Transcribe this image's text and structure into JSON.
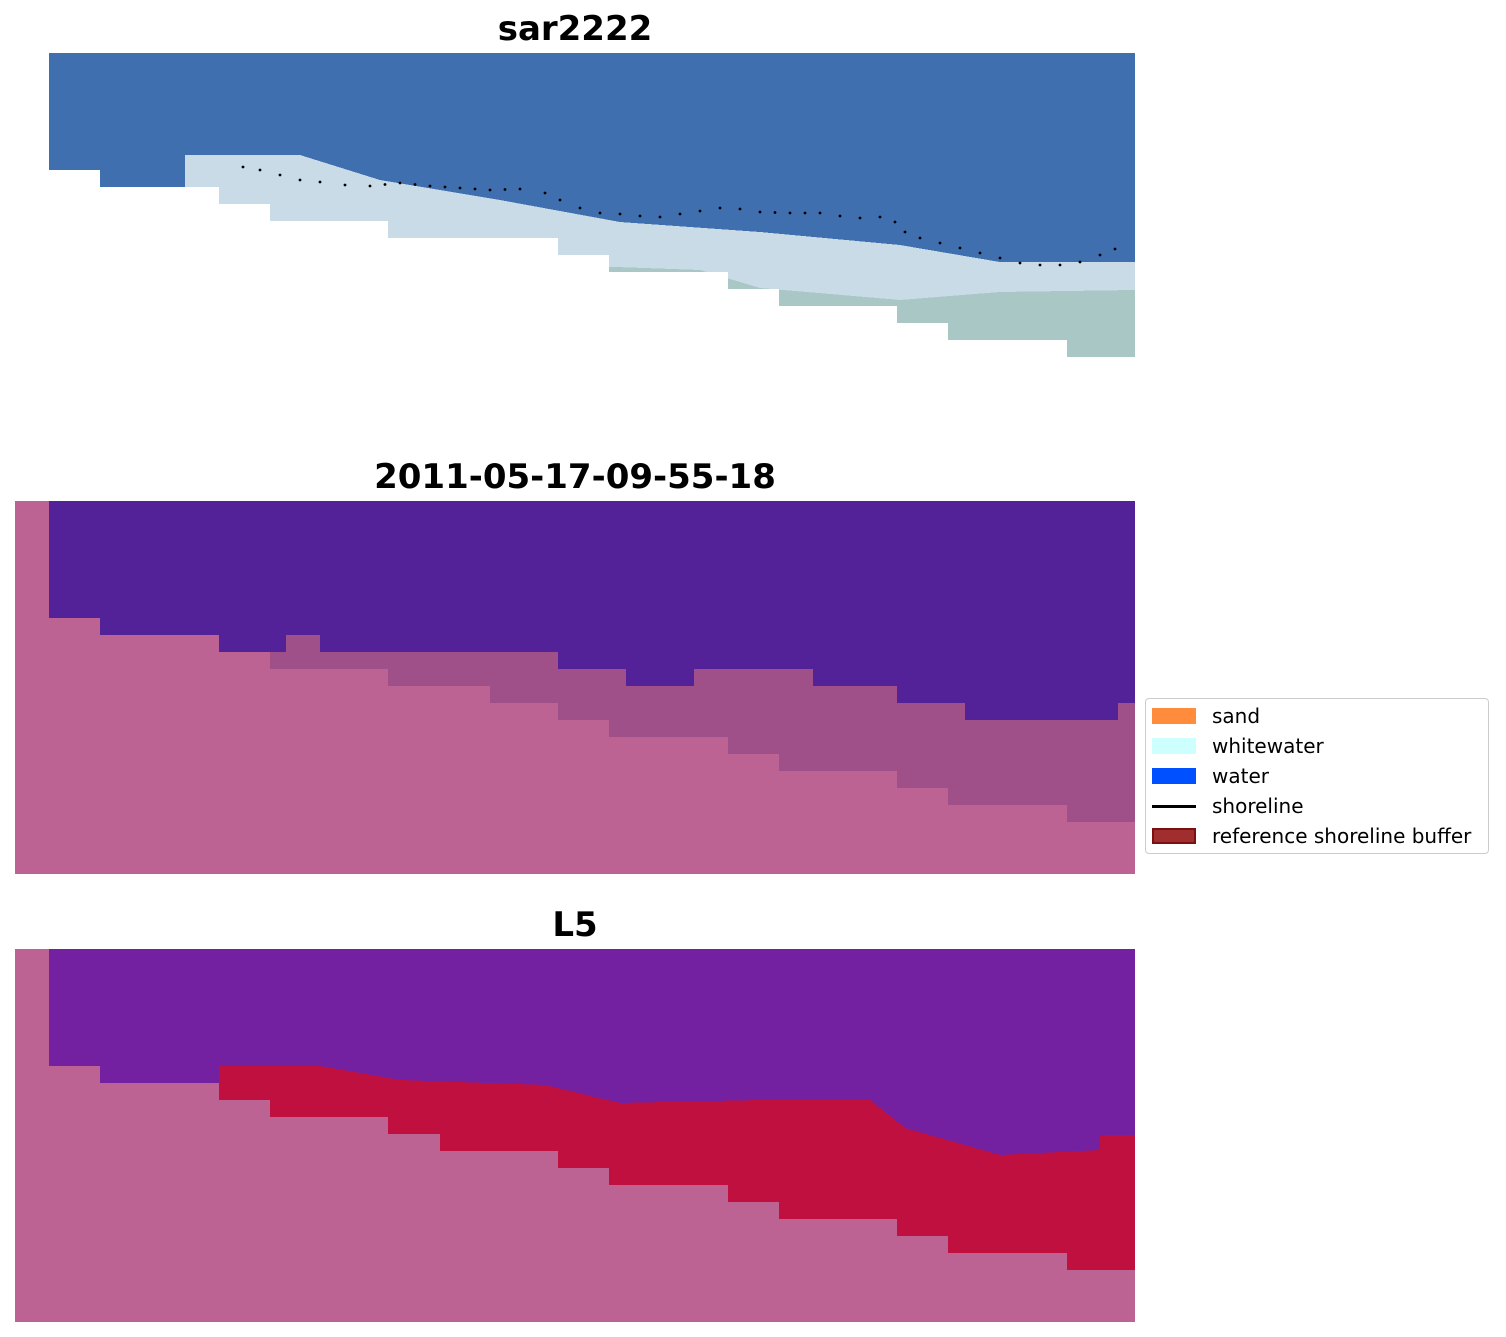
{
  "panels": [
    {
      "id": "rgb",
      "title": "sar2222"
    },
    {
      "id": "classified",
      "title": "2011-05-17-09-55-18"
    },
    {
      "id": "index",
      "title": "L5"
    }
  ],
  "legend": {
    "items": [
      {
        "label": "sand",
        "kind": "patch",
        "color": "#ff8c3c"
      },
      {
        "label": "whitewater",
        "kind": "patch",
        "color": "#ccfffe"
      },
      {
        "label": "water",
        "kind": "patch",
        "color": "#0050ff"
      },
      {
        "label": "shoreline",
        "kind": "line",
        "color": "#000000"
      },
      {
        "label": "reference shoreline buffer",
        "kind": "patch",
        "color": "#a02e2e",
        "edge": "#7a1010"
      }
    ]
  },
  "colors": {
    "rgb_water": "#3f6fae",
    "rgb_foam": "#c9dbe6",
    "rgb_sand": "#a9c7c4",
    "class_water": "#542298",
    "class_land": "#bc6394",
    "class_transition": "#a05088",
    "index_water": "#7321a0",
    "index_red": "#c01040",
    "index_land": "#bc6394"
  }
}
